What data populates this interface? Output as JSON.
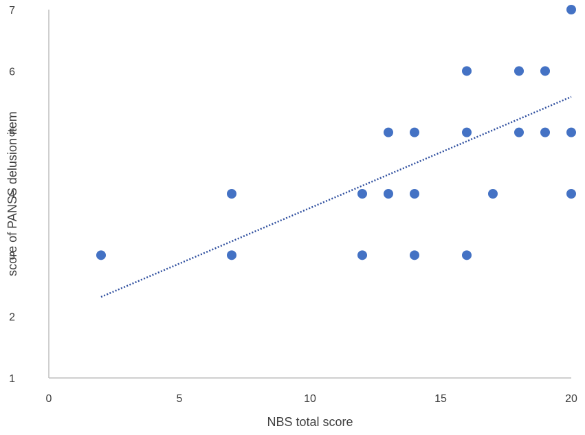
{
  "chart_data": {
    "type": "scatter",
    "title": "",
    "xlabel": "NBS total score",
    "ylabel": "score of PANSS delusion item",
    "xlim": [
      0,
      20
    ],
    "ylim": [
      1,
      7
    ],
    "x_ticks": [
      0,
      5,
      10,
      15,
      20
    ],
    "y_ticks": [
      1,
      2,
      3,
      4,
      5,
      6,
      7
    ],
    "grid": false,
    "legend": "none",
    "colors": {
      "marker": "#4472C4",
      "trendline": "#2F4F9F",
      "axis": "#BFBFBF",
      "text": "#404040"
    },
    "points": [
      {
        "x": 2,
        "y": 3
      },
      {
        "x": 7,
        "y": 4
      },
      {
        "x": 7,
        "y": 3
      },
      {
        "x": 12,
        "y": 4
      },
      {
        "x": 12,
        "y": 3
      },
      {
        "x": 13,
        "y": 5
      },
      {
        "x": 13,
        "y": 4
      },
      {
        "x": 14,
        "y": 5
      },
      {
        "x": 14,
        "y": 4
      },
      {
        "x": 14,
        "y": 3
      },
      {
        "x": 16,
        "y": 6
      },
      {
        "x": 16,
        "y": 5
      },
      {
        "x": 16,
        "y": 3
      },
      {
        "x": 17,
        "y": 4
      },
      {
        "x": 18,
        "y": 6
      },
      {
        "x": 18,
        "y": 5
      },
      {
        "x": 19,
        "y": 6
      },
      {
        "x": 19,
        "y": 5
      },
      {
        "x": 20,
        "y": 7
      },
      {
        "x": 20,
        "y": 5
      },
      {
        "x": 20,
        "y": 4
      }
    ],
    "trendline": {
      "type": "linear",
      "style": "dotted",
      "start": {
        "x": 2,
        "y": 2.32
      },
      "end": {
        "x": 20,
        "y": 5.58
      }
    }
  }
}
